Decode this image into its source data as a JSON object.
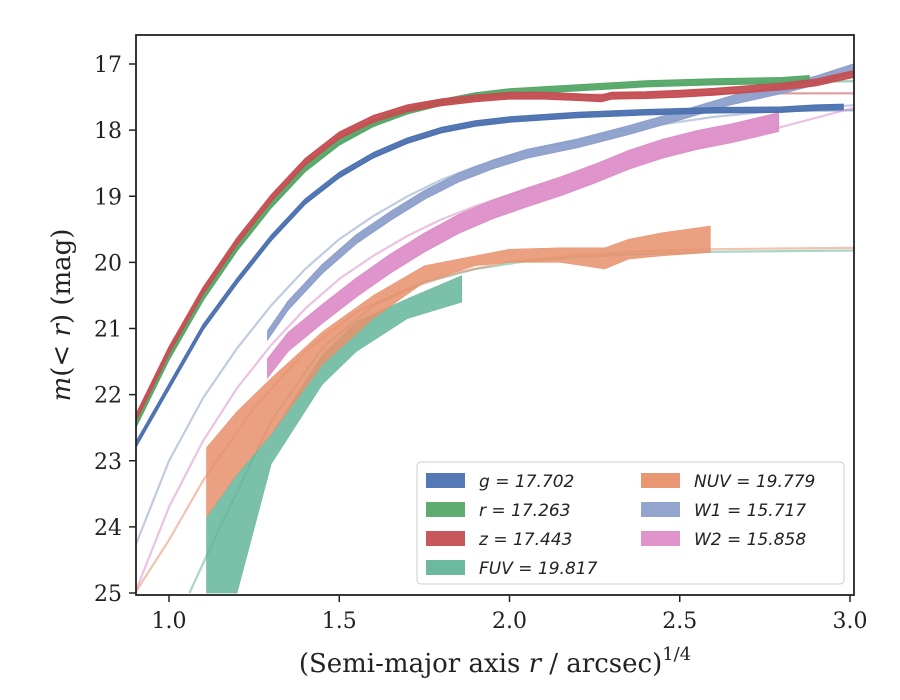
{
  "chart_data": {
    "type": "line",
    "xlabel_main": "(Semi-major axis ",
    "xlabel_var": "r",
    "xlabel_unit": " / arcsec)",
    "xlabel_exp": "1/4",
    "ylabel_m": "m",
    "ylabel_paren_open": "(< ",
    "ylabel_r": "r",
    "ylabel_rest": ") (mag)",
    "xlim": [
      0.9,
      3.02
    ],
    "ylim": [
      25,
      16.6
    ],
    "y_inverted": true,
    "x_ticks": [
      "1.0",
      "1.5",
      "2.0",
      "2.5",
      "3.0"
    ],
    "x_tick_values": [
      1.0,
      1.5,
      2.0,
      2.5,
      3.0
    ],
    "y_ticks": [
      "17",
      "18",
      "19",
      "20",
      "21",
      "22",
      "23",
      "24",
      "25"
    ],
    "y_tick_values": [
      17,
      18,
      19,
      20,
      21,
      22,
      23,
      24,
      25
    ],
    "legend_position": "lower-right",
    "series": [
      {
        "name": "g = 17.702",
        "color": "#4c72b0",
        "asymptote": 17.702,
        "fit_x": [
          0.9,
          1.0,
          1.1,
          1.2,
          1.3,
          1.4,
          1.5,
          1.6,
          1.7,
          1.8,
          1.9,
          2.0,
          2.2,
          2.4,
          2.6,
          2.8,
          3.02
        ],
        "fit_y": [
          22.8,
          21.9,
          21.0,
          20.3,
          19.65,
          19.1,
          18.7,
          18.4,
          18.18,
          18.02,
          17.92,
          17.85,
          17.78,
          17.74,
          17.72,
          17.71,
          17.7
        ],
        "band_x": [
          0.9,
          1.0,
          1.1,
          1.2,
          1.3,
          1.4,
          1.5,
          1.6,
          1.7,
          1.8,
          1.9,
          2.0,
          2.2,
          2.4,
          2.6,
          2.8,
          2.9,
          2.98
        ],
        "band_y": [
          22.78,
          21.88,
          20.98,
          20.28,
          19.63,
          19.08,
          18.68,
          18.38,
          18.16,
          18.0,
          17.9,
          17.84,
          17.77,
          17.73,
          17.7,
          17.69,
          17.66,
          17.65
        ],
        "band_width": 0.08
      },
      {
        "name": "r = 17.263",
        "color": "#55a868",
        "asymptote": 17.263,
        "fit_x": [
          0.9,
          1.0,
          1.1,
          1.2,
          1.3,
          1.4,
          1.5,
          1.6,
          1.7,
          1.8,
          1.9,
          2.0,
          2.2,
          2.4,
          2.6,
          2.8,
          3.02
        ],
        "fit_y": [
          22.5,
          21.45,
          20.55,
          19.8,
          19.15,
          18.6,
          18.2,
          17.92,
          17.73,
          17.6,
          17.5,
          17.43,
          17.36,
          17.31,
          17.29,
          17.27,
          17.26
        ],
        "band_x": [
          0.9,
          1.0,
          1.1,
          1.2,
          1.3,
          1.4,
          1.5,
          1.6,
          1.7,
          1.8,
          1.9,
          2.0,
          2.2,
          2.4,
          2.6,
          2.8,
          2.88
        ],
        "band_y": [
          22.48,
          21.43,
          20.53,
          19.78,
          19.13,
          18.58,
          18.18,
          17.9,
          17.71,
          17.58,
          17.48,
          17.42,
          17.36,
          17.3,
          17.27,
          17.25,
          17.22
        ],
        "band_width": 0.09
      },
      {
        "name": "z = 17.443",
        "color": "#c44e52",
        "asymptote": 17.443,
        "fit_x": [
          0.9,
          1.0,
          1.1,
          1.2,
          1.3,
          1.4,
          1.5,
          1.6,
          1.7,
          1.8,
          1.9,
          2.0,
          2.2,
          2.4,
          2.6,
          2.8,
          3.02
        ],
        "fit_y": [
          22.4,
          21.35,
          20.45,
          19.7,
          19.05,
          18.5,
          18.1,
          17.85,
          17.69,
          17.6,
          17.54,
          17.5,
          17.47,
          17.45,
          17.445,
          17.444,
          17.443
        ],
        "band_x": [
          0.9,
          1.0,
          1.1,
          1.2,
          1.3,
          1.4,
          1.5,
          1.6,
          1.7,
          1.8,
          1.9,
          2.0,
          2.1,
          2.2,
          2.27,
          2.3,
          2.4,
          2.5,
          2.6,
          2.7,
          2.8,
          2.9,
          3.02
        ],
        "band_y": [
          22.38,
          21.33,
          20.43,
          19.68,
          19.03,
          18.48,
          18.08,
          17.83,
          17.67,
          17.58,
          17.52,
          17.48,
          17.48,
          17.5,
          17.52,
          17.48,
          17.47,
          17.45,
          17.42,
          17.38,
          17.34,
          17.28,
          17.14
        ],
        "band_width": 0.1
      },
      {
        "name": "FUV = 19.817",
        "color": "#64b59a",
        "asymptote": 19.817,
        "fit_x": [
          1.06,
          1.15,
          1.3,
          1.45,
          1.6,
          1.75,
          1.9,
          2.05,
          2.2,
          2.4,
          2.6,
          2.8,
          3.02
        ],
        "fit_y": [
          25.0,
          24.0,
          22.4,
          21.3,
          20.65,
          20.3,
          20.1,
          19.98,
          19.92,
          19.87,
          19.84,
          19.83,
          19.82
        ],
        "band_x": [
          1.11,
          1.2,
          1.3,
          1.45,
          1.55,
          1.7,
          1.86
        ],
        "band_upper": [
          23.85,
          23.2,
          22.6,
          21.4,
          20.9,
          20.55,
          20.2
        ],
        "band_lower": [
          25.0,
          25.0,
          23.05,
          21.85,
          21.35,
          20.85,
          20.6
        ]
      },
      {
        "name": "NUV = 19.779",
        "color": "#e8916b",
        "asymptote": 19.779,
        "fit_x": [
          0.9,
          1.0,
          1.1,
          1.25,
          1.4,
          1.55,
          1.7,
          1.85,
          2.0,
          2.2,
          2.4,
          2.6,
          2.8,
          3.02
        ],
        "fit_y": [
          25.0,
          24.2,
          23.3,
          22.2,
          21.35,
          20.75,
          20.4,
          20.15,
          19.99,
          19.89,
          19.83,
          19.8,
          19.79,
          19.78
        ],
        "band_x": [
          1.11,
          1.2,
          1.3,
          1.45,
          1.6,
          1.75,
          1.9,
          2.0,
          2.15,
          2.28,
          2.35,
          2.45,
          2.59
        ],
        "band_upper": [
          22.8,
          22.25,
          21.75,
          21.05,
          20.5,
          20.05,
          19.9,
          19.8,
          19.78,
          19.78,
          19.65,
          19.55,
          19.45
        ],
        "band_lower": [
          23.85,
          23.2,
          22.6,
          21.55,
          20.85,
          20.3,
          20.05,
          20.0,
          20.0,
          20.1,
          19.95,
          19.9,
          19.85
        ]
      },
      {
        "name": "W1 = 15.717",
        "color": "#8da0cb",
        "asymptote": 15.717,
        "fit_x": [
          0.9,
          1.0,
          1.1,
          1.2,
          1.3,
          1.4,
          1.5,
          1.6,
          1.7,
          1.8,
          1.9,
          2.0,
          2.2,
          2.4,
          2.6,
          2.8,
          3.02
        ],
        "fit_y": [
          24.3,
          23.0,
          22.05,
          21.3,
          20.65,
          20.1,
          19.65,
          19.3,
          19.0,
          18.75,
          18.55,
          18.4,
          18.15,
          17.95,
          17.8,
          17.7,
          17.62
        ],
        "band_x": [
          1.29,
          1.35,
          1.45,
          1.55,
          1.65,
          1.75,
          1.85,
          1.95,
          2.05,
          2.2,
          2.35,
          2.5,
          2.65,
          2.8,
          2.9,
          3.02
        ],
        "band_y": [
          21.1,
          20.65,
          20.1,
          19.65,
          19.3,
          18.98,
          18.72,
          18.52,
          18.36,
          18.2,
          18.0,
          17.78,
          17.55,
          17.38,
          17.25,
          17.05
        ],
        "band_width": 0.13
      },
      {
        "name": "W2 = 15.858",
        "color": "#dd8fc8",
        "asymptote": 15.858,
        "fit_x": [
          0.9,
          1.0,
          1.1,
          1.2,
          1.3,
          1.4,
          1.5,
          1.6,
          1.7,
          1.8,
          1.9,
          2.0,
          2.2,
          2.4,
          2.6,
          2.8,
          3.02
        ],
        "fit_y": [
          25.0,
          23.7,
          22.7,
          21.9,
          21.25,
          20.7,
          20.25,
          19.9,
          19.6,
          19.35,
          19.15,
          18.98,
          18.7,
          18.45,
          18.2,
          17.95,
          17.65
        ],
        "band_x": [
          1.29,
          1.35,
          1.45,
          1.55,
          1.65,
          1.75,
          1.85,
          1.95,
          2.05,
          2.15,
          2.25,
          2.35,
          2.45,
          2.55,
          2.65,
          2.79
        ],
        "band_y": [
          21.6,
          21.2,
          20.78,
          20.38,
          20.02,
          19.7,
          19.42,
          19.2,
          19.02,
          18.85,
          18.66,
          18.45,
          18.28,
          18.15,
          18.05,
          17.88
        ],
        "band_width": 0.28
      }
    ]
  }
}
